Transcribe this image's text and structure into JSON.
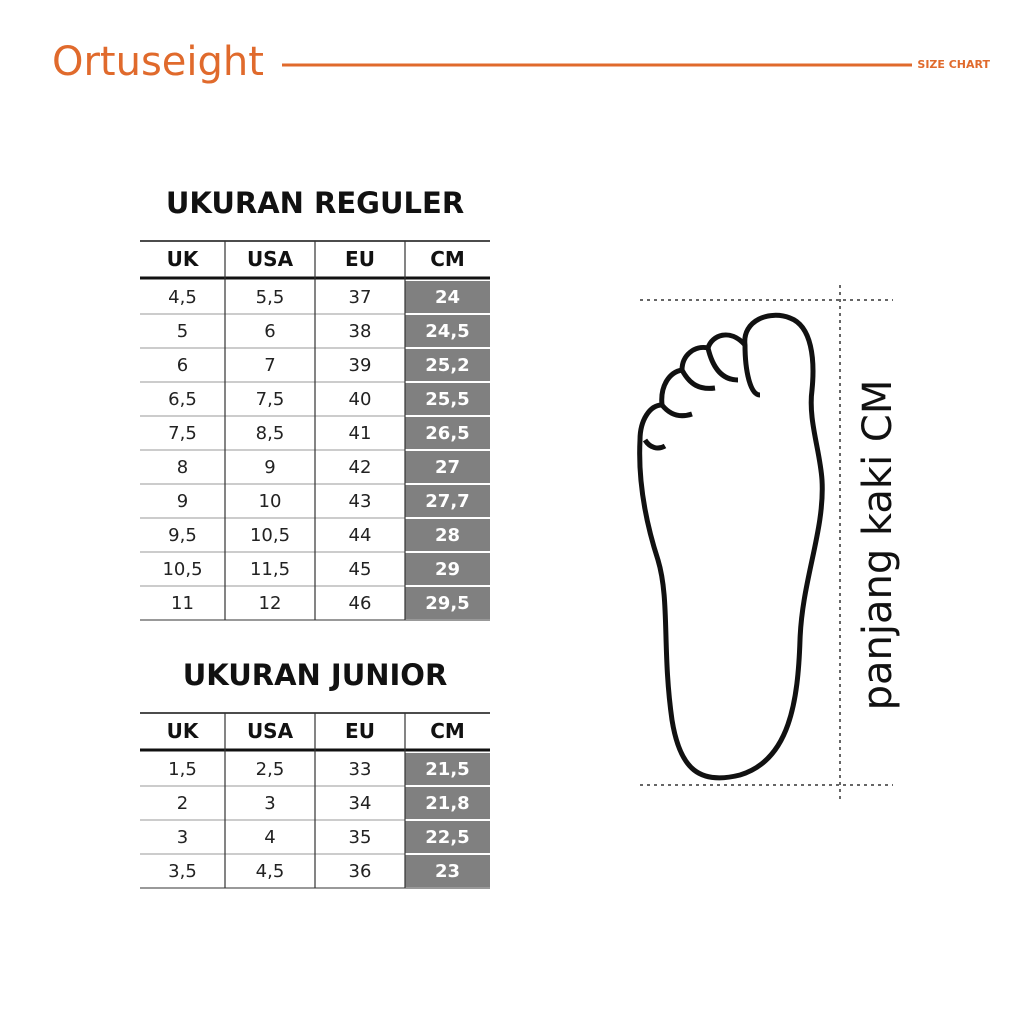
{
  "header": {
    "logo": "Ortuseight",
    "label": "SIZE CHART"
  },
  "tables": [
    {
      "title": "UKURAN REGULER",
      "columns": [
        "UK",
        "USA",
        "EU",
        "CM"
      ],
      "rows": [
        [
          "4,5",
          "5,5",
          "37",
          "24"
        ],
        [
          "5",
          "6",
          "38",
          "24,5"
        ],
        [
          "6",
          "7",
          "39",
          "25,2"
        ],
        [
          "6,5",
          "7,5",
          "40",
          "25,5"
        ],
        [
          "7,5",
          "8,5",
          "41",
          "26,5"
        ],
        [
          "8",
          "9",
          "42",
          "27"
        ],
        [
          "9",
          "10",
          "43",
          "27,7"
        ],
        [
          "9,5",
          "10,5",
          "44",
          "28"
        ],
        [
          "10,5",
          "11,5",
          "45",
          "29"
        ],
        [
          "11",
          "12",
          "46",
          "29,5"
        ]
      ]
    },
    {
      "title": "UKURAN JUNIOR",
      "columns": [
        "UK",
        "USA",
        "EU",
        "CM"
      ],
      "rows": [
        [
          "1,5",
          "2,5",
          "33",
          "21,5"
        ],
        [
          "2",
          "3",
          "34",
          "21,8"
        ],
        [
          "3",
          "4",
          "35",
          "22,5"
        ],
        [
          "3,5",
          "4,5",
          "36",
          "23"
        ]
      ]
    }
  ],
  "foot": {
    "label": "panjang kaki CM"
  }
}
